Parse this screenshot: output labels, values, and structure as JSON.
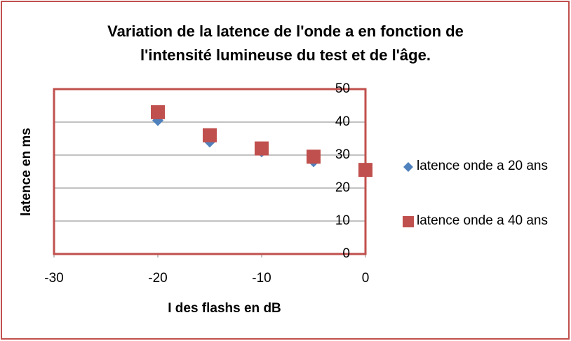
{
  "chart_data": {
    "type": "scatter",
    "title": "Variation de la latence de l'onde a en fonction de\nl'intensité lumineuse du test et de l'âge.",
    "x_label": "I des flashs en dB",
    "y_label": "latence en ms",
    "xlim": [
      -30,
      0
    ],
    "xticks": [
      -30,
      -20,
      -10,
      0
    ],
    "ylim": [
      0,
      50
    ],
    "yticks": [
      0,
      10,
      20,
      30,
      40,
      50
    ],
    "grid": true,
    "legend": "right",
    "series": [
      {
        "name": "latence onde a 20 ans",
        "color": "#4f81bd",
        "marker": "diamond",
        "x": [
          -20,
          -15,
          -10,
          -5,
          0
        ],
        "values": [
          40.5,
          34,
          31,
          28,
          25.5
        ]
      },
      {
        "name": "latence onde a 40 ans",
        "color": "#c0504d",
        "marker": "square",
        "x": [
          -20,
          -15,
          -10,
          -5,
          0
        ],
        "values": [
          43,
          36,
          32,
          29.5,
          25.5
        ]
      }
    ]
  }
}
